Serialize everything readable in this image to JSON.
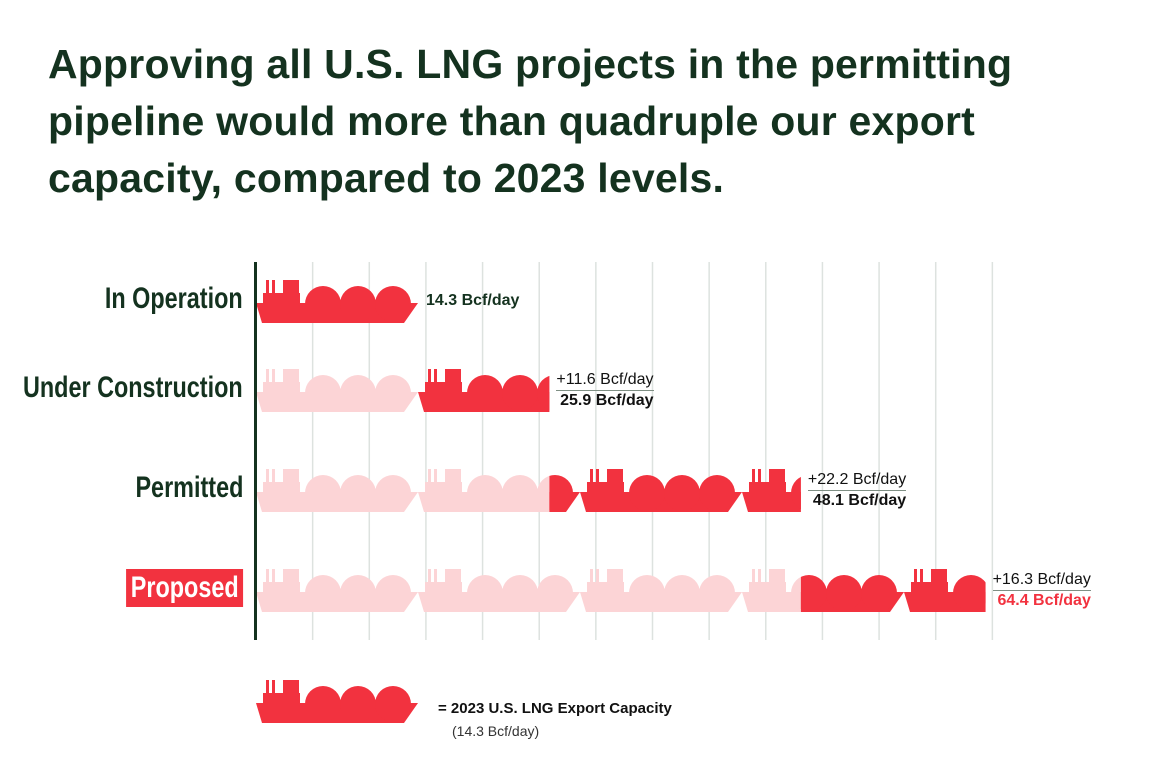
{
  "title": "Approving all U.S. LNG projects in the permitting pipeline would more than quadruple our export capacity, compared to 2023 levels.",
  "colors": {
    "solid": "#f2323f",
    "faded": "#fcd4d6",
    "text": "#14321f",
    "grid": "#dde2df"
  },
  "chart_data": {
    "type": "pictogram-bar",
    "unit": "Bcf/day",
    "icon": "lng-tanker-ship-icon",
    "icon_value": 14.3,
    "grid_step": 5,
    "xlim": [
      0,
      65
    ],
    "rows": [
      {
        "label": "In Operation",
        "added": 14.3,
        "total": 14.3,
        "added_label": "",
        "total_label": "14.3 Bcf/day",
        "highlight": false
      },
      {
        "label": "Under Construction",
        "added": 11.6,
        "total": 25.9,
        "added_label": "+11.6 Bcf/day",
        "total_label": "25.9 Bcf/day",
        "highlight": false
      },
      {
        "label": "Permitted",
        "added": 22.2,
        "total": 48.1,
        "added_label": "+22.2 Bcf/day",
        "total_label": "48.1 Bcf/day",
        "highlight": false
      },
      {
        "label": "Proposed",
        "added": 16.3,
        "total": 64.4,
        "added_label": "+16.3 Bcf/day",
        "total_label": "64.4 Bcf/day",
        "highlight": true
      }
    ]
  },
  "legend": {
    "text": "= 2023 U.S. LNG Export Capacity",
    "sub": "(14.3 Bcf/day)"
  }
}
